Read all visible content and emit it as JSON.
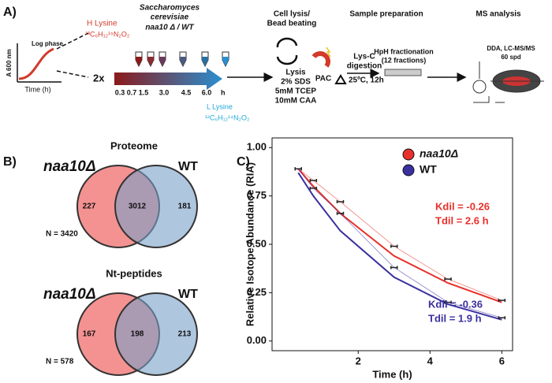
{
  "workflow": {
    "label": "A)",
    "growth": {
      "phase": "Log phase",
      "y_label": "A 600 nm",
      "x_label": "Time (h)"
    },
    "heavy": {
      "name": "H Lysine",
      "formula": "¹³C₆H₁₂¹⁵N₂O₂"
    },
    "organism": [
      "Saccharomyces",
      "cerevisiae"
    ],
    "strains": "naa10 Δ / WT",
    "replicates": "2x",
    "timepoints": [
      "0.3",
      "0.7",
      "1.5",
      "3.0",
      "4.5",
      "6.0"
    ],
    "time_unit": "h",
    "light": {
      "name": "L Lysine",
      "formula": "¹²C₆H₁₂¹⁴N₂O₂"
    },
    "lysis": {
      "title": [
        "Cell lysis/",
        "Bead beating"
      ],
      "lines": [
        "Lysis",
        "2% SDS",
        "5mM TCEP",
        "10mM CAA"
      ]
    },
    "pac": "PAC",
    "prep": {
      "title": "Sample preparation",
      "digestion": [
        "Lys-C",
        "digestion"
      ],
      "conditions": "25ºC, 12h",
      "fractionation": [
        "HpH fractionation",
        "(12 fractions)"
      ]
    },
    "ms": {
      "title": "MS analysis",
      "lines": [
        "DDA, LC-MS/MS",
        "60 spd"
      ]
    }
  },
  "venn": {
    "label": "B)",
    "sets": [
      {
        "title": "Proteome",
        "left": "naa10Δ",
        "right": "WT",
        "counts": [
          227,
          3012,
          181
        ],
        "total": "N = 3420"
      },
      {
        "title": "Nt-peptides",
        "left": "naa10Δ",
        "right": "WT",
        "counts": [
          167,
          198,
          213
        ],
        "total": "N = 578"
      }
    ]
  },
  "chart_data": {
    "type": "line",
    "label": "C)",
    "x_label": "Time (h)",
    "y_label": "Relative Isotope Abundance (RIA)",
    "x": [
      0.33,
      0.75,
      1.5,
      3.0,
      4.5,
      6.0
    ],
    "xlim": [
      -0.4,
      6.3
    ],
    "xticks": [
      2,
      4,
      6
    ],
    "ylim": [
      -0.05,
      1.05
    ],
    "yticks": [
      {
        "value": 0,
        "label": "0.00"
      },
      {
        "value": 0.25,
        "label": "0.25"
      },
      {
        "value": 0.5,
        "label": "0.50"
      },
      {
        "value": 0.75,
        "label": "0.75"
      },
      {
        "value": 1,
        "label": "1.00"
      }
    ],
    "legend": "top-right",
    "series": [
      {
        "name": "naa10Δ",
        "color": "#e8302a",
        "values": [
          0.89,
          0.83,
          0.72,
          0.49,
          0.32,
          0.21
        ],
        "fit": [
          0.89,
          0.8,
          0.66,
          0.44,
          0.3,
          0.2
        ]
      },
      {
        "name": "WT",
        "color": "#3a30a0",
        "values": [
          0.89,
          0.79,
          0.66,
          0.38,
          0.2,
          0.12
        ],
        "fit": [
          0.87,
          0.75,
          0.57,
          0.33,
          0.19,
          0.11
        ]
      }
    ],
    "annotations": [
      {
        "lines": [
          "Kdil = -0.26",
          "Tdil = 2.6 h"
        ],
        "color": "#e8302a"
      },
      {
        "lines": [
          "Kdil = -0.36",
          "Tdil = 1.9 h"
        ],
        "color": "#3a30a0"
      }
    ]
  }
}
